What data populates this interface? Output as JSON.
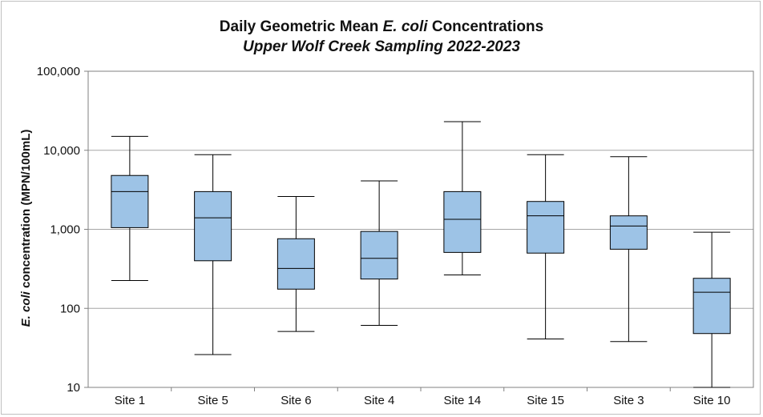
{
  "chart_data": {
    "type": "boxplot",
    "title": {
      "prefix": "Daily Geometric Mean ",
      "italic": "E. coli",
      "suffix": " Concentrations"
    },
    "subtitle": "Upper Wolf Creek Sampling 2022-2023",
    "ylabel": {
      "italic": "E. coli",
      "rest": " concentration (MPN/100mL)"
    },
    "xlabel": "",
    "yscale": "log",
    "ylim": [
      10,
      100000
    ],
    "yticks": [
      {
        "value": 10,
        "label": "10"
      },
      {
        "value": 100,
        "label": "100"
      },
      {
        "value": 1000,
        "label": "1,000"
      },
      {
        "value": 10000,
        "label": "10,000"
      },
      {
        "value": 100000,
        "label": "100,000"
      }
    ],
    "grid": true,
    "legend": false,
    "box_color": "#9dc3e6",
    "categories": [
      "Site 1",
      "Site 5",
      "Site 6",
      "Site 4",
      "Site 14",
      "Site 15",
      "Site 3",
      "Site 10"
    ],
    "boxes": [
      {
        "min": 225,
        "q1": 1050,
        "median": 3000,
        "q3": 4800,
        "max": 15000
      },
      {
        "min": 26,
        "q1": 400,
        "median": 1400,
        "q3": 3000,
        "max": 8800
      },
      {
        "min": 51,
        "q1": 175,
        "median": 320,
        "q3": 760,
        "max": 2600
      },
      {
        "min": 61,
        "q1": 235,
        "median": 430,
        "q3": 940,
        "max": 4100
      },
      {
        "min": 265,
        "q1": 510,
        "median": 1340,
        "q3": 3000,
        "max": 23000
      },
      {
        "min": 41,
        "q1": 500,
        "median": 1480,
        "q3": 2250,
        "max": 8800
      },
      {
        "min": 38,
        "q1": 560,
        "median": 1100,
        "q3": 1480,
        "max": 8300
      },
      {
        "min": 10,
        "q1": 48,
        "median": 160,
        "q3": 240,
        "max": 920
      }
    ]
  }
}
